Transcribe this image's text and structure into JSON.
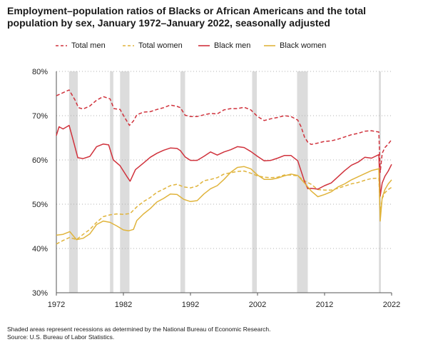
{
  "title": "Employment–population ratios of Blacks or African Americans and the total population by sex, January 1972–January 2022, seasonally adjusted",
  "notes": {
    "line1": "Shaded areas represent recessions as determined by the National Bureau of Economic Research.",
    "line2": "Source: U.S. Bureau of Labor Statistics."
  },
  "colors": {
    "red": "#d0323c",
    "gold": "#e0b43c",
    "shade": "#dcdcdc",
    "grid": "#b0b0b0",
    "axis": "#555555"
  },
  "chart_data": {
    "type": "line",
    "title": "Employment–population ratios of Blacks or African Americans and the total population by sex, January 1972–January 2022, seasonally adjusted",
    "xlabel": "",
    "ylabel": "",
    "xlim": [
      1972,
      2022
    ],
    "ylim": [
      30,
      80
    ],
    "x_ticks": [
      1972,
      1982,
      1992,
      2002,
      2012,
      2022
    ],
    "x_tick_labels": [
      "1972",
      "1982",
      "1992",
      "2002",
      "2012",
      "2022"
    ],
    "y_ticks": [
      30,
      40,
      50,
      60,
      70,
      80
    ],
    "y_tick_labels": [
      "30%",
      "40%",
      "50%",
      "60%",
      "70%",
      "80%"
    ],
    "grid": "horizontal dotted",
    "legend": "top",
    "recessions": [
      [
        1973.9,
        1975.2
      ],
      [
        1980.0,
        1980.5
      ],
      [
        1981.5,
        1982.9
      ],
      [
        1990.5,
        1991.2
      ],
      [
        2001.2,
        2001.9
      ],
      [
        2007.9,
        2009.5
      ],
      [
        2020.1,
        2020.4
      ]
    ],
    "series": [
      {
        "name": "Total men",
        "color": "#d0323c",
        "dash": "dashed",
        "x": [
          1972,
          1973,
          1973.9,
          1974.8,
          1975.3,
          1976,
          1977,
          1978,
          1979,
          1980,
          1980.6,
          1981.5,
          1982.3,
          1982.9,
          1983.5,
          1984,
          1985,
          1986,
          1987,
          1988,
          1989,
          1990,
          1990.5,
          1991.2,
          1992,
          1993,
          1994,
          1995,
          1996,
          1997,
          1998,
          1999,
          2000,
          2001,
          2002,
          2003,
          2004,
          2005,
          2006,
          2007,
          2008,
          2008.5,
          2009,
          2009.5,
          2010,
          2011,
          2012,
          2013,
          2014,
          2015,
          2016,
          2017,
          2018,
          2019,
          2020.1,
          2020.3,
          2020.6,
          2021,
          2021.5,
          2022
        ],
        "y": [
          74.5,
          75.2,
          75.8,
          73.5,
          71.8,
          71.5,
          72.2,
          73.5,
          74.3,
          73.8,
          71.6,
          71.4,
          69.3,
          67.8,
          68.8,
          70.2,
          70.8,
          70.9,
          71.4,
          71.8,
          72.4,
          72.1,
          71.8,
          70.1,
          69.8,
          69.8,
          70.2,
          70.5,
          70.4,
          71.3,
          71.6,
          71.6,
          71.9,
          71.3,
          69.8,
          68.9,
          69.3,
          69.6,
          70.0,
          69.8,
          69.0,
          67.5,
          65.2,
          64.0,
          63.5,
          63.8,
          64.2,
          64.3,
          64.7,
          65.2,
          65.7,
          66.0,
          66.5,
          66.6,
          66.3,
          57.2,
          61.5,
          62.8,
          63.6,
          64.6
        ]
      },
      {
        "name": "Total women",
        "color": "#e0b43c",
        "dash": "dashed",
        "x": [
          1972,
          1973,
          1974,
          1975,
          1976,
          1977,
          1978,
          1979,
          1980,
          1981,
          1982,
          1983,
          1984,
          1985,
          1986,
          1987,
          1988,
          1989,
          1990,
          1991,
          1992,
          1993,
          1994,
          1995,
          1996,
          1997,
          1998,
          1999,
          2000,
          2001,
          2002,
          2003,
          2004,
          2005,
          2006,
          2007,
          2008,
          2009,
          2010,
          2011,
          2012,
          2013,
          2014,
          2015,
          2016,
          2017,
          2018,
          2019,
          2020.1,
          2020.3,
          2020.6,
          2021,
          2021.5,
          2022
        ],
        "y": [
          41.0,
          41.8,
          42.5,
          42.0,
          43.2,
          44.3,
          45.9,
          47.2,
          47.6,
          47.8,
          47.7,
          47.9,
          49.4,
          50.6,
          51.5,
          52.7,
          53.4,
          54.2,
          54.5,
          53.9,
          53.7,
          54.1,
          55.3,
          55.6,
          56.0,
          56.8,
          57.1,
          57.4,
          57.5,
          57.0,
          56.4,
          56.1,
          56.0,
          56.1,
          56.6,
          56.6,
          56.4,
          55.3,
          54.5,
          53.3,
          53.2,
          53.2,
          53.6,
          54.1,
          54.6,
          54.9,
          55.4,
          55.8,
          55.9,
          47.8,
          51.3,
          52.6,
          53.3,
          53.8
        ]
      },
      {
        "name": "Black men",
        "color": "#d0323c",
        "dash": "solid",
        "x": [
          1972,
          1972.4,
          1973,
          1973.9,
          1974.5,
          1975.2,
          1976,
          1977,
          1978,
          1979,
          1979.8,
          1980.5,
          1981.5,
          1982.5,
          1983,
          1983.8,
          1985,
          1986,
          1987,
          1988,
          1989,
          1990,
          1990.5,
          1991.2,
          1992,
          1993,
          1994,
          1995,
          1996,
          1997,
          1998,
          1999,
          2000,
          2001,
          2002,
          2003,
          2004,
          2005,
          2006,
          2007,
          2008,
          2009,
          2009.5,
          2010,
          2011,
          2012,
          2013,
          2014,
          2015,
          2016,
          2017,
          2018,
          2019,
          2020.1,
          2020.3,
          2020.6,
          2021,
          2021.5,
          2022
        ],
        "y": [
          65.5,
          67.5,
          67.0,
          67.8,
          64.5,
          60.5,
          60.3,
          60.8,
          63.0,
          63.6,
          63.4,
          60.0,
          58.7,
          56.3,
          55.2,
          57.8,
          59.3,
          60.6,
          61.5,
          62.2,
          62.7,
          62.6,
          62.1,
          60.7,
          59.9,
          59.9,
          60.8,
          61.8,
          61.1,
          61.8,
          62.3,
          63.0,
          62.8,
          61.9,
          60.8,
          59.8,
          59.9,
          60.4,
          61.0,
          61.0,
          59.8,
          55.2,
          53.5,
          53.6,
          53.4,
          54.2,
          54.8,
          56.2,
          57.6,
          58.8,
          59.5,
          60.6,
          60.4,
          61.2,
          51.8,
          54.8,
          56.3,
          57.5,
          59.0
        ]
      },
      {
        "name": "Black women",
        "color": "#e0b43c",
        "dash": "solid",
        "x": [
          1972,
          1973,
          1974,
          1975,
          1976,
          1977,
          1978,
          1979,
          1980,
          1981,
          1982,
          1982.8,
          1983.5,
          1984,
          1985,
          1986,
          1987,
          1988,
          1989,
          1990,
          1991,
          1992,
          1993,
          1994,
          1995,
          1996,
          1997,
          1998,
          1999,
          2000,
          2001,
          2002,
          2003,
          2004,
          2005,
          2006,
          2007,
          2008,
          2009,
          2010,
          2011,
          2012,
          2013,
          2014,
          2015,
          2016,
          2017,
          2018,
          2019,
          2020.1,
          2020.3,
          2020.6,
          2021,
          2021.5,
          2022
        ],
        "y": [
          43.0,
          43.2,
          43.8,
          42.0,
          42.3,
          43.3,
          45.4,
          46.2,
          45.9,
          45.1,
          44.2,
          44.0,
          44.3,
          46.3,
          47.8,
          49.0,
          50.5,
          51.3,
          52.3,
          52.2,
          51.1,
          50.6,
          50.8,
          52.3,
          53.5,
          54.2,
          55.6,
          57.2,
          58.3,
          58.5,
          58.0,
          56.6,
          55.6,
          55.6,
          55.9,
          56.4,
          56.8,
          56.5,
          54.8,
          53.0,
          51.7,
          52.2,
          52.8,
          53.9,
          54.6,
          55.5,
          56.2,
          56.9,
          57.6,
          58.0,
          46.2,
          51.5,
          53.3,
          54.6,
          55.5
        ]
      }
    ]
  }
}
